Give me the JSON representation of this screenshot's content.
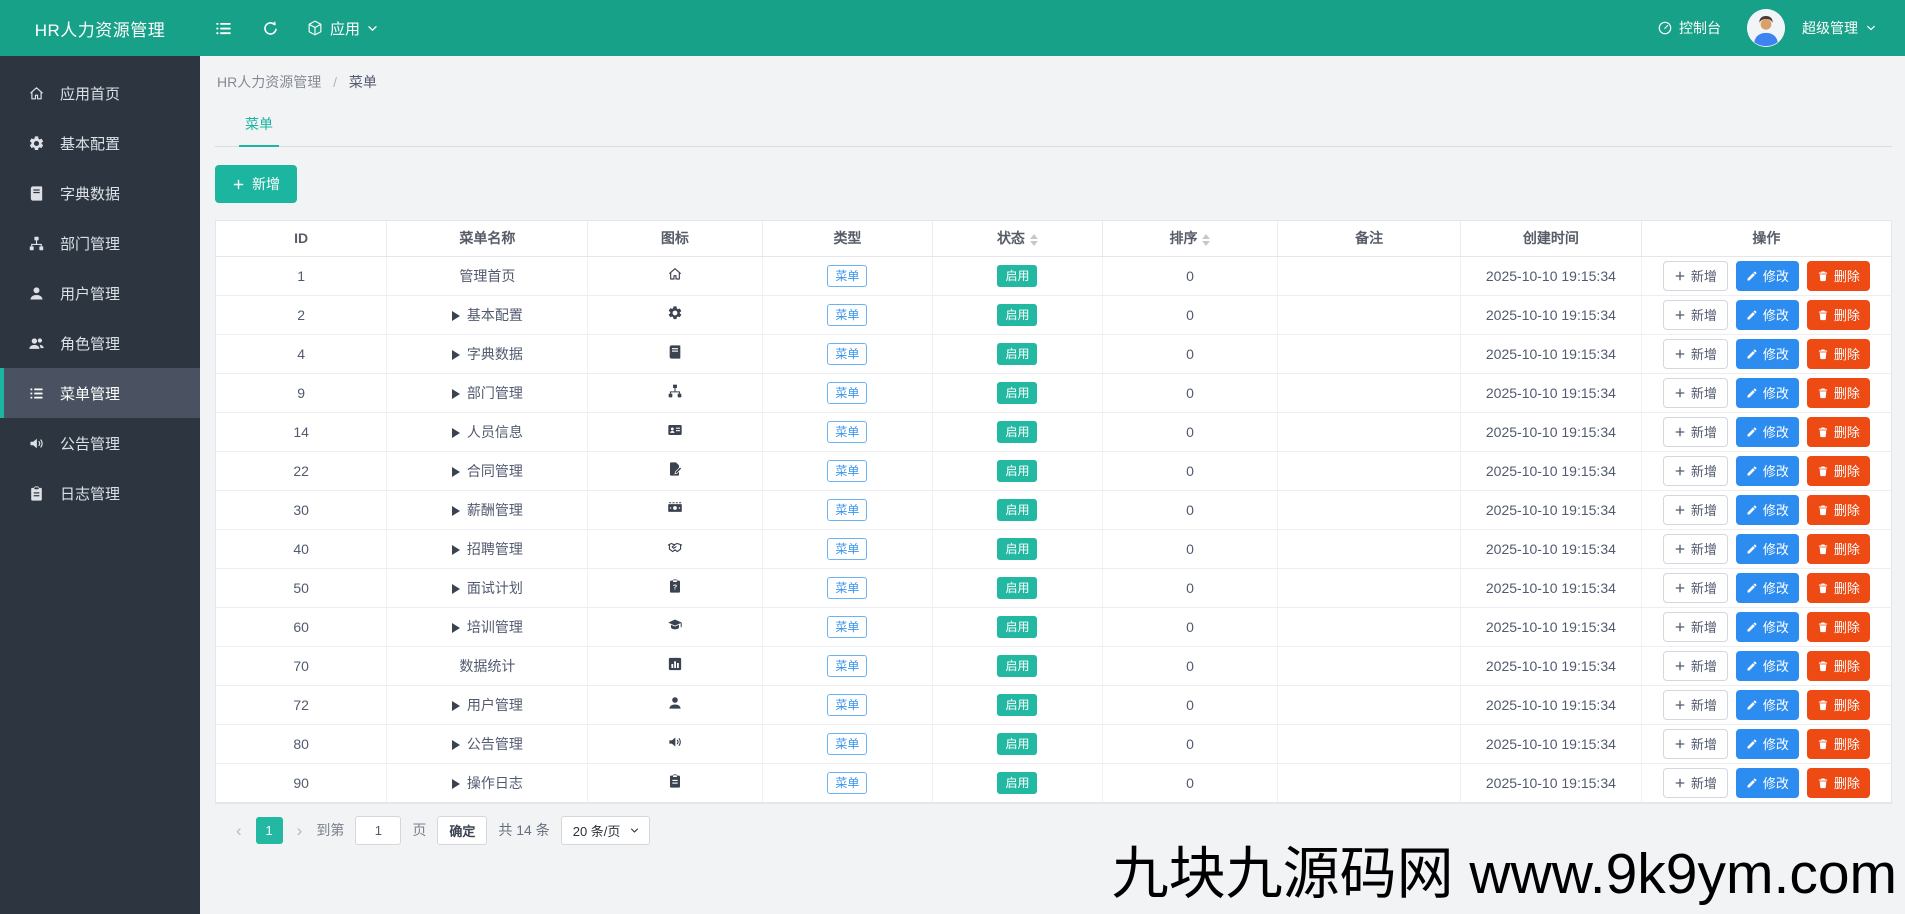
{
  "topbar": {
    "brand": "HR人力资源管理",
    "app_menu_label": "应用",
    "console_label": "控制台",
    "user_name": "超级管理",
    "icons": [
      "menu-fold-icon",
      "refresh-icon",
      "cube-icon",
      "gauge-icon",
      "avatar",
      "chevron-down-icon"
    ]
  },
  "sidebar": {
    "items": [
      {
        "label": "应用首页",
        "icon": "home",
        "active": false
      },
      {
        "label": "基本配置",
        "icon": "cog",
        "active": false
      },
      {
        "label": "字典数据",
        "icon": "book",
        "active": false
      },
      {
        "label": "部门管理",
        "icon": "sitemap",
        "active": false
      },
      {
        "label": "用户管理",
        "icon": "user",
        "active": false
      },
      {
        "label": "角色管理",
        "icon": "users",
        "active": false
      },
      {
        "label": "菜单管理",
        "icon": "list",
        "active": true
      },
      {
        "label": "公告管理",
        "icon": "volume",
        "active": false
      },
      {
        "label": "日志管理",
        "icon": "clipboard",
        "active": false
      }
    ]
  },
  "breadcrumb": {
    "root": "HR人力资源管理",
    "separator": "/",
    "current": "菜单"
  },
  "tab": {
    "label": "菜单"
  },
  "toolbar": {
    "add_label": "新增"
  },
  "table": {
    "columns": [
      {
        "label": "ID",
        "sortable": false
      },
      {
        "label": "菜单名称",
        "sortable": false
      },
      {
        "label": "图标",
        "sortable": false
      },
      {
        "label": "类型",
        "sortable": false
      },
      {
        "label": "状态",
        "sortable": true
      },
      {
        "label": "排序",
        "sortable": true
      },
      {
        "label": "备注",
        "sortable": false
      },
      {
        "label": "创建时间",
        "sortable": false
      },
      {
        "label": "操作",
        "sortable": false
      }
    ],
    "actions": {
      "add": "新增",
      "edit": "修改",
      "delete": "删除"
    },
    "rows": [
      {
        "id": "1",
        "name": "管理首页",
        "expandable": false,
        "icon": "home",
        "type": "菜单",
        "status": "启用",
        "sort": "0",
        "remark": "",
        "created": "2025-10-10 19:15:34"
      },
      {
        "id": "2",
        "name": "基本配置",
        "expandable": true,
        "icon": "cog",
        "type": "菜单",
        "status": "启用",
        "sort": "0",
        "remark": "",
        "created": "2025-10-10 19:15:34"
      },
      {
        "id": "4",
        "name": "字典数据",
        "expandable": true,
        "icon": "book",
        "type": "菜单",
        "status": "启用",
        "sort": "0",
        "remark": "",
        "created": "2025-10-10 19:15:34"
      },
      {
        "id": "9",
        "name": "部门管理",
        "expandable": true,
        "icon": "sitemap",
        "type": "菜单",
        "status": "启用",
        "sort": "0",
        "remark": "",
        "created": "2025-10-10 19:15:34"
      },
      {
        "id": "14",
        "name": "人员信息",
        "expandable": true,
        "icon": "id-card",
        "type": "菜单",
        "status": "启用",
        "sort": "0",
        "remark": "",
        "created": "2025-10-10 19:15:34"
      },
      {
        "id": "22",
        "name": "合同管理",
        "expandable": true,
        "icon": "file-pen",
        "type": "菜单",
        "status": "启用",
        "sort": "0",
        "remark": "",
        "created": "2025-10-10 19:15:34"
      },
      {
        "id": "30",
        "name": "薪酬管理",
        "expandable": true,
        "icon": "money",
        "type": "菜单",
        "status": "启用",
        "sort": "0",
        "remark": "",
        "created": "2025-10-10 19:15:34"
      },
      {
        "id": "40",
        "name": "招聘管理",
        "expandable": true,
        "icon": "handshake",
        "type": "菜单",
        "status": "启用",
        "sort": "0",
        "remark": "",
        "created": "2025-10-10 19:15:34"
      },
      {
        "id": "50",
        "name": "面试计划",
        "expandable": true,
        "icon": "clipboard-question",
        "type": "菜单",
        "status": "启用",
        "sort": "0",
        "remark": "",
        "created": "2025-10-10 19:15:34"
      },
      {
        "id": "60",
        "name": "培训管理",
        "expandable": true,
        "icon": "graduation-cap",
        "type": "菜单",
        "status": "启用",
        "sort": "0",
        "remark": "",
        "created": "2025-10-10 19:15:34"
      },
      {
        "id": "70",
        "name": "数据统计",
        "expandable": false,
        "icon": "chart",
        "type": "菜单",
        "status": "启用",
        "sort": "0",
        "remark": "",
        "created": "2025-10-10 19:15:34"
      },
      {
        "id": "72",
        "name": "用户管理",
        "expandable": true,
        "icon": "user",
        "type": "菜单",
        "status": "启用",
        "sort": "0",
        "remark": "",
        "created": "2025-10-10 19:15:34"
      },
      {
        "id": "80",
        "name": "公告管理",
        "expandable": true,
        "icon": "volume",
        "type": "菜单",
        "status": "启用",
        "sort": "0",
        "remark": "",
        "created": "2025-10-10 19:15:34"
      },
      {
        "id": "90",
        "name": "操作日志",
        "expandable": true,
        "icon": "clipboard",
        "type": "菜单",
        "status": "启用",
        "sort": "0",
        "remark": "",
        "created": "2025-10-10 19:15:34"
      }
    ]
  },
  "pagination": {
    "prev": "‹",
    "page": "1",
    "next": "›",
    "goto_label": "到第",
    "page_value": "1",
    "page_unit": "页",
    "confirm_label": "确定",
    "total_label": "共 14 条",
    "page_size_label": "20 条/页"
  },
  "watermark": "九块九源码网 www.9k9ym.com",
  "colors": {
    "topbar_teal": "#18a189",
    "accent_teal": "#1cb5a0",
    "status_badge_teal": "#23b8a2",
    "sidebar_dark": "#2d3540",
    "sidebar_active": "#4a5261",
    "type_badge_blue": "#3a95ee",
    "edit_button_blue": "#2d8cf0",
    "delete_button_orange": "#ed4a14",
    "content_bg": "#f2f3f4"
  }
}
